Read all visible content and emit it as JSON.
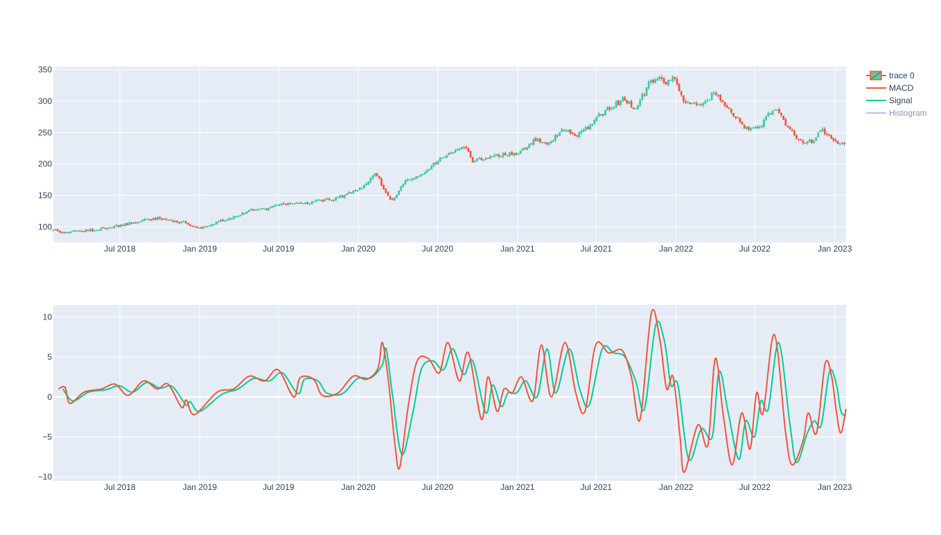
{
  "colors": {
    "plot_bg": "#E5ECF6",
    "grid": "#ffffff",
    "increasing": "#00CC96",
    "increasing_fill": "#6DBF9C",
    "decreasing": "#EF553B",
    "macd": "#EF553B",
    "signal": "#00CC96",
    "histogram": "#C8B8F2",
    "text": "#2a3f5f"
  },
  "legend": [
    {
      "name": "trace 0",
      "icon": "candlestick-icon",
      "dim": false
    },
    {
      "name": "MACD",
      "icon": "line-icon",
      "dim": false
    },
    {
      "name": "Signal",
      "icon": "line-icon",
      "dim": false
    },
    {
      "name": "Histogram",
      "icon": "line-icon",
      "dim": true
    }
  ],
  "chart_data": [
    {
      "type": "candlestick",
      "series_name": "trace 0",
      "x_range": [
        "2018-01-29",
        "2023-01-27"
      ],
      "x_ticks": [
        "Jul 2018",
        "Jan 2019",
        "Jul 2019",
        "Jan 2020",
        "Jul 2020",
        "Jan 2021",
        "Jul 2021",
        "Jan 2022",
        "Jul 2022",
        "Jan 2023"
      ],
      "y_range": [
        75,
        355
      ],
      "y_ticks": [
        100,
        150,
        200,
        250,
        300,
        350
      ],
      "grid": true,
      "approx_close_trend": [
        [
          "2018-02-01",
          94
        ],
        [
          "2018-03-01",
          91
        ],
        [
          "2018-05-01",
          95
        ],
        [
          "2018-07-01",
          102
        ],
        [
          "2018-09-01",
          111
        ],
        [
          "2018-10-01",
          114
        ],
        [
          "2018-11-01",
          108
        ],
        [
          "2018-12-01",
          107
        ],
        [
          "2018-12-25",
          97
        ],
        [
          "2019-02-01",
          105
        ],
        [
          "2019-04-01",
          118
        ],
        [
          "2019-05-01",
          128
        ],
        [
          "2019-06-01",
          128
        ],
        [
          "2019-07-01",
          136
        ],
        [
          "2019-09-01",
          138
        ],
        [
          "2019-11-01",
          144
        ],
        [
          "2019-12-01",
          151
        ],
        [
          "2020-01-01",
          158
        ],
        [
          "2020-02-10",
          185
        ],
        [
          "2020-03-01",
          160
        ],
        [
          "2020-03-20",
          140
        ],
        [
          "2020-04-15",
          173
        ],
        [
          "2020-06-01",
          185
        ],
        [
          "2020-07-01",
          206
        ],
        [
          "2020-08-01",
          215
        ],
        [
          "2020-08-31",
          228
        ],
        [
          "2020-09-20",
          205
        ],
        [
          "2020-11-01",
          212
        ],
        [
          "2021-01-01",
          218
        ],
        [
          "2021-02-15",
          240
        ],
        [
          "2021-03-15",
          232
        ],
        [
          "2021-04-15",
          256
        ],
        [
          "2021-05-15",
          246
        ],
        [
          "2021-06-15",
          260
        ],
        [
          "2021-07-15",
          282
        ],
        [
          "2021-09-01",
          302
        ],
        [
          "2021-10-01",
          288
        ],
        [
          "2021-11-01",
          330
        ],
        [
          "2021-11-20",
          340
        ],
        [
          "2021-12-10",
          330
        ],
        [
          "2021-12-28",
          338
        ],
        [
          "2022-01-15",
          305
        ],
        [
          "2022-02-20",
          290
        ],
        [
          "2022-03-30",
          312
        ],
        [
          "2022-05-01",
          285
        ],
        [
          "2022-06-15",
          255
        ],
        [
          "2022-07-15",
          262
        ],
        [
          "2022-08-15",
          290
        ],
        [
          "2022-09-15",
          260
        ],
        [
          "2022-10-15",
          235
        ],
        [
          "2022-11-10",
          235
        ],
        [
          "2022-12-01",
          255
        ],
        [
          "2022-12-30",
          240
        ],
        [
          "2023-01-15",
          232
        ],
        [
          "2023-01-27",
          236
        ]
      ]
    },
    {
      "type": "line",
      "x_range": [
        "2018-01-29",
        "2023-01-27"
      ],
      "x_ticks": [
        "Jul 2018",
        "Jan 2019",
        "Jul 2019",
        "Jan 2020",
        "Jul 2020",
        "Jan 2021",
        "Jul 2021",
        "Jan 2022",
        "Jul 2022",
        "Jan 2023"
      ],
      "y_range": [
        -10.5,
        11.5
      ],
      "y_ticks": [
        10,
        5,
        0,
        -5,
        -10
      ],
      "y_tick_labels": [
        "10",
        "5",
        "0",
        "−5",
        "−10"
      ],
      "grid": true,
      "series": [
        {
          "name": "MACD",
          "points": [
            [
              "2018-02-10",
              1.0
            ],
            [
              "2018-02-25",
              1.2
            ],
            [
              "2018-03-08",
              -0.8
            ],
            [
              "2018-04-10",
              0.6
            ],
            [
              "2018-05-20",
              1.0
            ],
            [
              "2018-06-20",
              1.6
            ],
            [
              "2018-07-20",
              0.2
            ],
            [
              "2018-08-25",
              2.0
            ],
            [
              "2018-09-25",
              1.0
            ],
            [
              "2018-10-20",
              1.6
            ],
            [
              "2018-11-20",
              -1.3
            ],
            [
              "2018-12-01",
              -0.4
            ],
            [
              "2018-12-20",
              -2.2
            ],
            [
              "2019-02-10",
              0.6
            ],
            [
              "2019-03-20",
              1.0
            ],
            [
              "2019-04-25",
              2.6
            ],
            [
              "2019-05-30",
              2.0
            ],
            [
              "2019-06-30",
              3.4
            ],
            [
              "2019-08-05",
              0.0
            ],
            [
              "2019-08-20",
              2.4
            ],
            [
              "2019-09-20",
              2.2
            ],
            [
              "2019-10-10",
              0.2
            ],
            [
              "2019-11-15",
              0.5
            ],
            [
              "2019-12-20",
              2.6
            ],
            [
              "2020-01-20",
              2.2
            ],
            [
              "2020-02-15",
              3.6
            ],
            [
              "2020-02-25",
              6.8
            ],
            [
              "2020-03-10",
              2.0
            ],
            [
              "2020-03-25",
              -6.0
            ],
            [
              "2020-04-05",
              -8.8
            ],
            [
              "2020-04-25",
              -1.0
            ],
            [
              "2020-05-15",
              4.5
            ],
            [
              "2020-06-10",
              4.8
            ],
            [
              "2020-07-05",
              3.0
            ],
            [
              "2020-07-25",
              6.8
            ],
            [
              "2020-08-20",
              2.0
            ],
            [
              "2020-09-10",
              5.5
            ],
            [
              "2020-10-10",
              -2.8
            ],
            [
              "2020-10-25",
              2.5
            ],
            [
              "2020-11-15",
              -1.8
            ],
            [
              "2020-12-01",
              1.0
            ],
            [
              "2020-12-20",
              0.5
            ],
            [
              "2021-01-10",
              2.5
            ],
            [
              "2021-02-05",
              -0.5
            ],
            [
              "2021-02-25",
              6.5
            ],
            [
              "2021-03-20",
              0.0
            ],
            [
              "2021-04-20",
              6.8
            ],
            [
              "2021-05-15",
              0.5
            ],
            [
              "2021-06-05",
              -1.8
            ],
            [
              "2021-06-30",
              6.5
            ],
            [
              "2021-07-30",
              5.5
            ],
            [
              "2021-08-30",
              5.8
            ],
            [
              "2021-09-20",
              2.5
            ],
            [
              "2021-10-10",
              -2.8
            ],
            [
              "2021-11-05",
              10.5
            ],
            [
              "2021-11-25",
              7.0
            ],
            [
              "2021-12-10",
              1.0
            ],
            [
              "2021-12-25",
              2.5
            ],
            [
              "2022-01-10",
              -5.0
            ],
            [
              "2022-01-20",
              -9.4
            ],
            [
              "2022-02-20",
              -3.5
            ],
            [
              "2022-03-15",
              -6.0
            ],
            [
              "2022-04-01",
              4.8
            ],
            [
              "2022-04-20",
              -2.5
            ],
            [
              "2022-05-10",
              -8.5
            ],
            [
              "2022-06-01",
              -2.0
            ],
            [
              "2022-06-20",
              -6.5
            ],
            [
              "2022-07-05",
              0.5
            ],
            [
              "2022-07-20",
              -2.0
            ],
            [
              "2022-08-15",
              7.8
            ],
            [
              "2022-09-10",
              -4.5
            ],
            [
              "2022-09-25",
              -8.5
            ],
            [
              "2022-10-20",
              -5.5
            ],
            [
              "2022-11-01",
              -2.0
            ],
            [
              "2022-11-20",
              -4.5
            ],
            [
              "2022-12-10",
              4.2
            ],
            [
              "2022-12-25",
              2.5
            ],
            [
              "2023-01-05",
              -2.0
            ],
            [
              "2023-01-15",
              -4.5
            ],
            [
              "2023-01-27",
              -1.5
            ]
          ]
        },
        {
          "name": "Signal",
          "points": [
            [
              "2018-02-20",
              1.0
            ],
            [
              "2018-03-15",
              -0.5
            ],
            [
              "2018-04-20",
              0.6
            ],
            [
              "2018-05-30",
              0.9
            ],
            [
              "2018-06-30",
              1.4
            ],
            [
              "2018-07-30",
              0.6
            ],
            [
              "2018-09-01",
              1.8
            ],
            [
              "2018-10-01",
              1.1
            ],
            [
              "2018-10-30",
              1.3
            ],
            [
              "2018-11-30",
              -1.0
            ],
            [
              "2018-12-10",
              -0.6
            ],
            [
              "2019-01-01",
              -1.8
            ],
            [
              "2019-02-20",
              0.3
            ],
            [
              "2019-03-30",
              1.0
            ],
            [
              "2019-05-05",
              2.3
            ],
            [
              "2019-06-10",
              2.0
            ],
            [
              "2019-07-10",
              3.0
            ],
            [
              "2019-08-15",
              0.4
            ],
            [
              "2019-08-30",
              2.2
            ],
            [
              "2019-09-30",
              2.0
            ],
            [
              "2019-10-20",
              0.5
            ],
            [
              "2019-11-25",
              0.4
            ],
            [
              "2019-12-30",
              2.3
            ],
            [
              "2020-01-30",
              2.4
            ],
            [
              "2020-02-25",
              4.0
            ],
            [
              "2020-03-05",
              6.0
            ],
            [
              "2020-03-20",
              0.0
            ],
            [
              "2020-04-10",
              -7.2
            ],
            [
              "2020-05-05",
              -2.0
            ],
            [
              "2020-05-25",
              3.5
            ],
            [
              "2020-06-20",
              4.5
            ],
            [
              "2020-07-15",
              3.4
            ],
            [
              "2020-08-05",
              6.0
            ],
            [
              "2020-08-30",
              2.8
            ],
            [
              "2020-09-20",
              4.5
            ],
            [
              "2020-10-20",
              -2.0
            ],
            [
              "2020-11-05",
              1.5
            ],
            [
              "2020-11-25",
              -1.2
            ],
            [
              "2020-12-10",
              0.5
            ],
            [
              "2020-12-30",
              0.5
            ],
            [
              "2021-01-20",
              2.0
            ],
            [
              "2021-02-15",
              0.0
            ],
            [
              "2021-03-10",
              6.0
            ],
            [
              "2021-03-30",
              0.5
            ],
            [
              "2021-04-30",
              6.0
            ],
            [
              "2021-05-25",
              0.8
            ],
            [
              "2021-06-15",
              -1.0
            ],
            [
              "2021-07-15",
              6.0
            ],
            [
              "2021-08-10",
              5.5
            ],
            [
              "2021-09-05",
              5.0
            ],
            [
              "2021-09-30",
              2.0
            ],
            [
              "2021-10-20",
              -1.5
            ],
            [
              "2021-11-15",
              9.0
            ],
            [
              "2021-12-05",
              7.0
            ],
            [
              "2021-12-20",
              1.5
            ],
            [
              "2022-01-05",
              1.5
            ],
            [
              "2022-01-30",
              -7.8
            ],
            [
              "2022-02-28",
              -4.0
            ],
            [
              "2022-03-25",
              -5.0
            ],
            [
              "2022-04-10",
              3.2
            ],
            [
              "2022-05-01",
              -2.0
            ],
            [
              "2022-05-25",
              -7.8
            ],
            [
              "2022-06-10",
              -3.0
            ],
            [
              "2022-06-30",
              -5.0
            ],
            [
              "2022-07-15",
              -0.5
            ],
            [
              "2022-08-01",
              -1.5
            ],
            [
              "2022-08-25",
              6.8
            ],
            [
              "2022-09-20",
              -3.5
            ],
            [
              "2022-10-05",
              -8.2
            ],
            [
              "2022-10-30",
              -4.5
            ],
            [
              "2022-11-15",
              -3.0
            ],
            [
              "2022-12-01",
              -3.5
            ],
            [
              "2022-12-20",
              3.2
            ],
            [
              "2023-01-05",
              1.5
            ],
            [
              "2023-01-15",
              -1.8
            ],
            [
              "2023-01-27",
              -2.3
            ]
          ]
        }
      ]
    }
  ]
}
